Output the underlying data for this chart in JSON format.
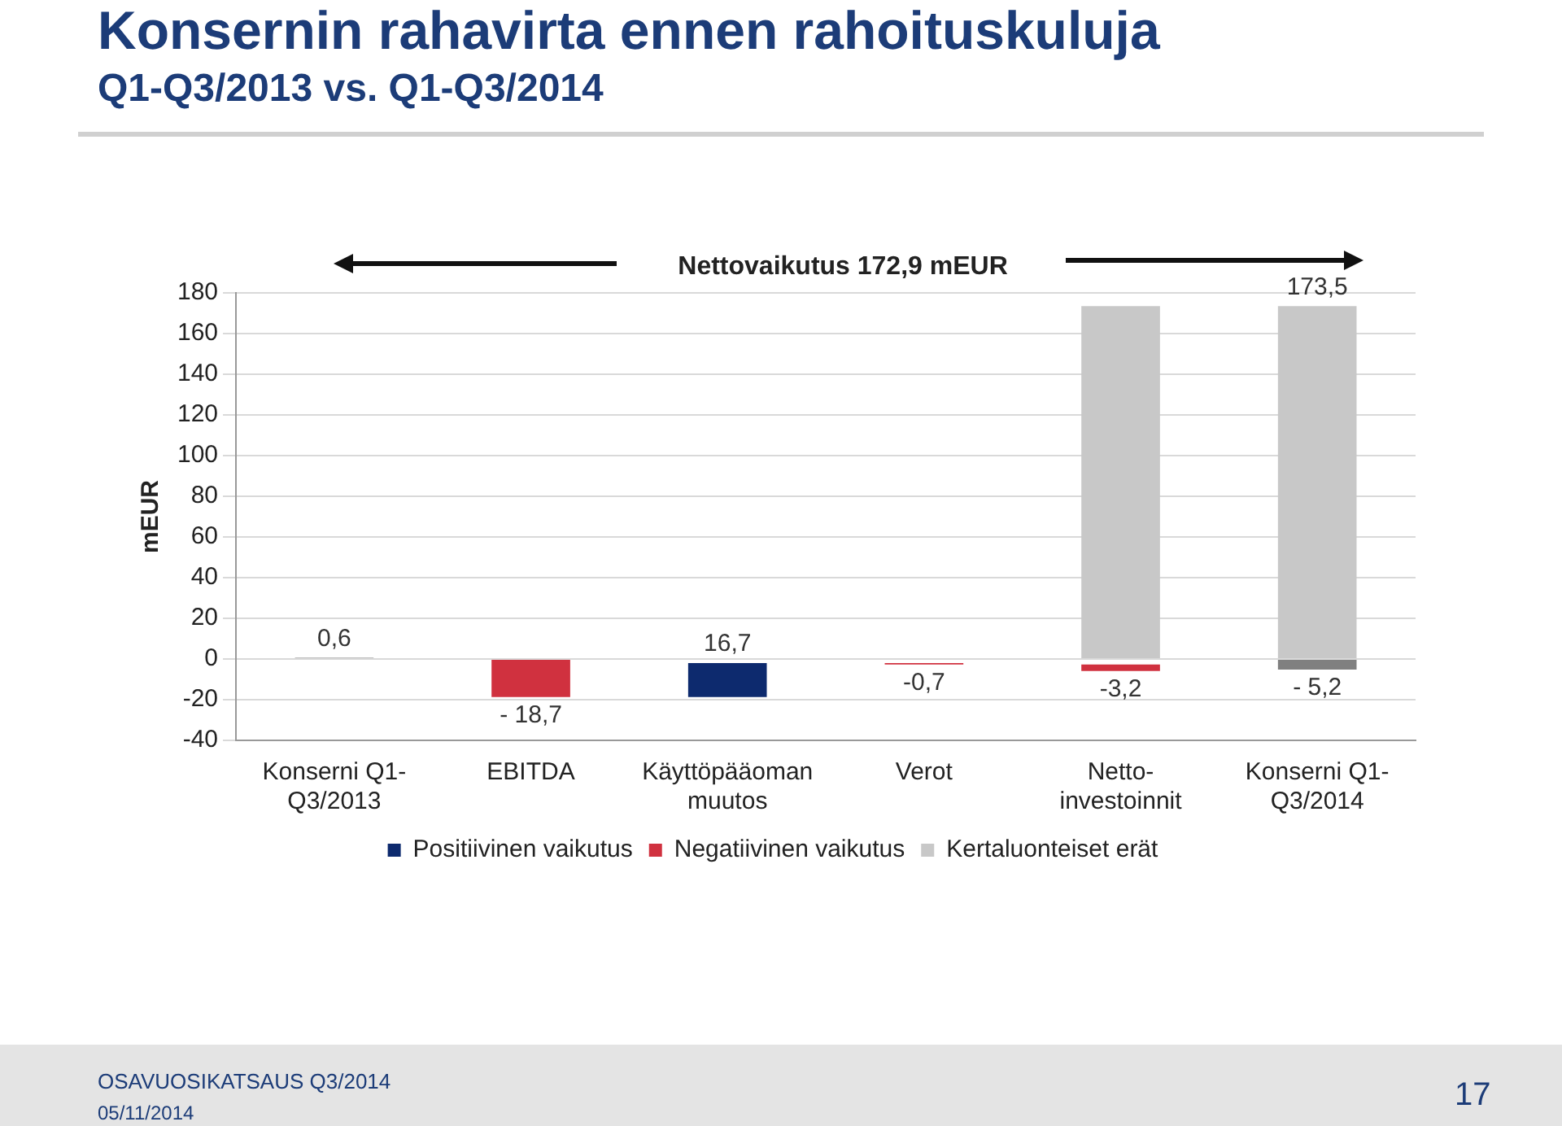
{
  "chart_data": {
    "type": "bar",
    "title": "Konsernin rahavirta ennen rahoituskuluja",
    "subtitle": "Q1-Q3/2013 vs. Q1-Q3/2014",
    "ylabel": "mEUR",
    "categories": [
      "Konserni Q1-Q3/2013",
      "EBITDA",
      "Käyttöpääoman muutos",
      "Verot",
      "Netto-investoinnit",
      "Konserni Q1-Q3/2014"
    ],
    "series": [
      {
        "name": "Positiivinen vaikutus",
        "color": "#0d2a6e",
        "values": [
          null,
          null,
          16.7,
          null,
          null,
          null
        ],
        "base": [
          null,
          null,
          -18.7,
          null,
          null,
          null
        ],
        "value_labels": [
          null,
          null,
          "16,7",
          null,
          null,
          null
        ]
      },
      {
        "name": "Negatiivinen vaikutus",
        "color": "#d0313f",
        "values": [
          null,
          -18.7,
          null,
          -0.7,
          -3.2,
          null
        ],
        "base": [
          null,
          0,
          null,
          -2.0,
          -2.7,
          null
        ],
        "value_labels": [
          null,
          "- 18,7",
          null,
          "-0,7",
          "-3,2",
          null
        ]
      },
      {
        "name": "Kertaluonteiset erät",
        "color": "#c8c8c8",
        "values": [
          null,
          null,
          null,
          null,
          173.5,
          173.5
        ],
        "base": [
          null,
          null,
          null,
          null,
          0,
          0
        ],
        "value_labels": [
          null,
          null,
          null,
          null,
          null,
          "173,5"
        ]
      },
      {
        "color": "#808080",
        "values": [
          0.6,
          null,
          null,
          null,
          null,
          -5.2
        ],
        "base": [
          0,
          null,
          null,
          null,
          null,
          0
        ],
        "value_labels": [
          "0,6",
          null,
          null,
          null,
          null,
          "- 5,2"
        ]
      }
    ],
    "ylim": [
      -40,
      180
    ],
    "yticks": [
      -40,
      -20,
      0,
      20,
      40,
      60,
      80,
      100,
      120,
      140,
      160,
      180
    ],
    "grid": "y",
    "legend": "bottom",
    "annotations": [
      "Nettovaikutus 172,9 mEUR",
      "OSAVUOSIKATSAUS Q3/2014",
      "05/11/2014",
      "17"
    ]
  }
}
